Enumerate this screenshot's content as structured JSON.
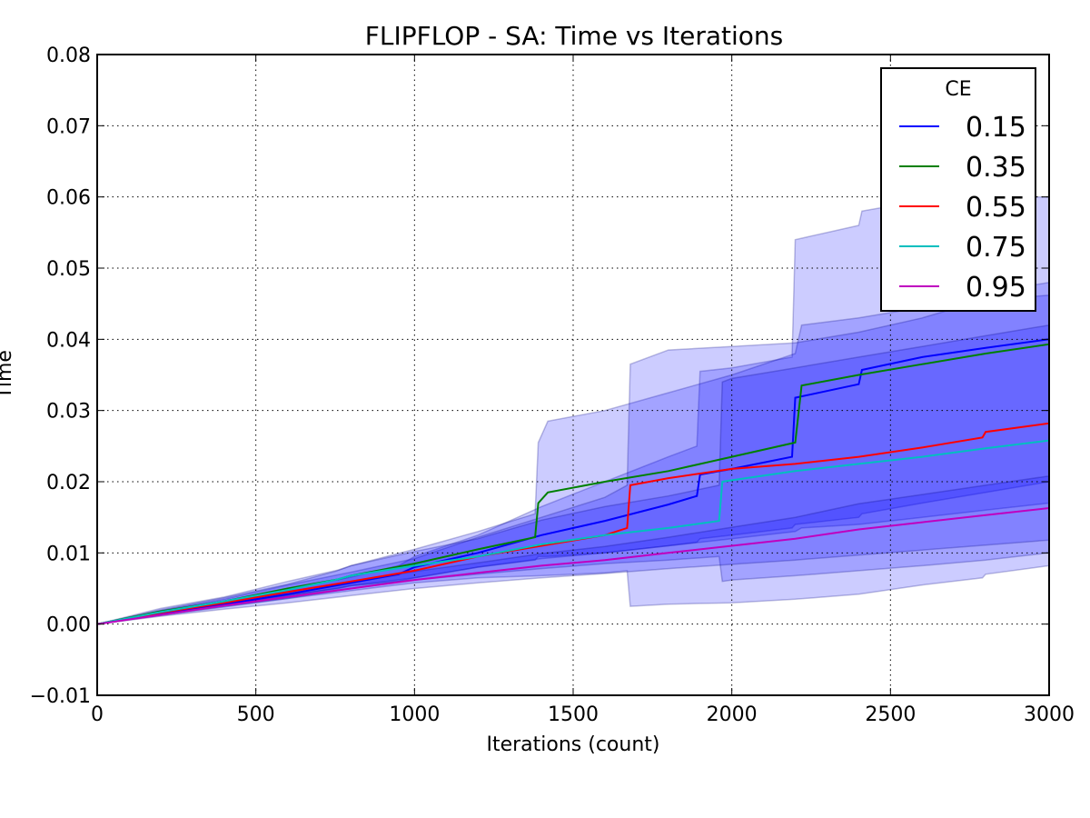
{
  "chart_data": {
    "type": "line",
    "title": "FLIPFLOP - SA: Time vs Iterations",
    "xlabel": "Iterations (count)",
    "ylabel": "Time",
    "xlim": [
      0,
      3000
    ],
    "ylim": [
      -0.01,
      0.08
    ],
    "xticks": [
      "0",
      "500",
      "1000",
      "1500",
      "2000",
      "2500",
      "3000"
    ],
    "yticks": [
      "−0.01",
      "0.00",
      "0.01",
      "0.02",
      "0.03",
      "0.04",
      "0.05",
      "0.06",
      "0.07",
      "0.08"
    ],
    "xtick_values": [
      0,
      500,
      1000,
      1500,
      2000,
      2500,
      3000
    ],
    "ytick_values": [
      -0.01,
      0,
      0.01,
      0.02,
      0.03,
      0.04,
      0.05,
      0.06,
      0.07,
      0.08
    ],
    "grid": true,
    "legend": {
      "title": "CE",
      "placement": "top-right"
    },
    "band_color": "#0000ff",
    "series": [
      {
        "name": "0.15",
        "color": "#0000ff",
        "x": [
          0,
          200,
          400,
          600,
          800,
          950,
          1000,
          1200,
          1400,
          1600,
          1800,
          1890,
          1900,
          2000,
          2190,
          2200,
          2400,
          2410,
          2600,
          2800,
          3000
        ],
        "y": [
          0,
          0.0015,
          0.0028,
          0.0042,
          0.0058,
          0.007,
          0.008,
          0.01,
          0.0125,
          0.0145,
          0.0168,
          0.018,
          0.021,
          0.0218,
          0.0235,
          0.0318,
          0.0337,
          0.0357,
          0.0375,
          0.0388,
          0.04
        ],
        "lower": [
          0,
          0.0012,
          0.0024,
          0.0036,
          0.005,
          0.006,
          0.0065,
          0.008,
          0.0092,
          0.01,
          0.011,
          0.0115,
          0.012,
          0.0125,
          0.0135,
          0.014,
          0.015,
          0.0155,
          0.017,
          0.0185,
          0.02
        ],
        "upper": [
          0,
          0.0018,
          0.0032,
          0.0048,
          0.0066,
          0.0082,
          0.0095,
          0.0125,
          0.0165,
          0.02,
          0.0235,
          0.025,
          0.0355,
          0.036,
          0.0375,
          0.054,
          0.056,
          0.058,
          0.0595,
          0.06,
          0.06
        ]
      },
      {
        "name": "0.35",
        "color": "#008000",
        "x": [
          0,
          200,
          400,
          600,
          760,
          800,
          1000,
          1200,
          1380,
          1390,
          1420,
          1600,
          1800,
          2000,
          2200,
          2220,
          2400,
          2600,
          2800,
          3000
        ],
        "y": [
          0,
          0.0018,
          0.0032,
          0.005,
          0.0063,
          0.0068,
          0.0085,
          0.0105,
          0.0122,
          0.017,
          0.0185,
          0.02,
          0.0215,
          0.0235,
          0.0255,
          0.0335,
          0.035,
          0.0365,
          0.038,
          0.0393
        ],
        "lower": [
          0,
          0.0014,
          0.0026,
          0.004,
          0.005,
          0.0054,
          0.0065,
          0.008,
          0.009,
          0.0095,
          0.0095,
          0.01,
          0.011,
          0.012,
          0.013,
          0.0135,
          0.014,
          0.015,
          0.016,
          0.017
        ],
        "upper": [
          0,
          0.0022,
          0.0038,
          0.006,
          0.0076,
          0.0082,
          0.0105,
          0.013,
          0.0155,
          0.0255,
          0.0285,
          0.03,
          0.0325,
          0.035,
          0.038,
          0.042,
          0.043,
          0.0445,
          0.0455,
          0.0462
        ]
      },
      {
        "name": "0.55",
        "color": "#ff0000",
        "x": [
          0,
          200,
          400,
          600,
          800,
          1000,
          1200,
          1400,
          1600,
          1670,
          1680,
          1800,
          2000,
          2200,
          2400,
          2600,
          2790,
          2800,
          3000
        ],
        "y": [
          0,
          0.0016,
          0.003,
          0.0045,
          0.006,
          0.0075,
          0.0095,
          0.011,
          0.0125,
          0.0135,
          0.0195,
          0.0205,
          0.0218,
          0.0225,
          0.0235,
          0.0248,
          0.0262,
          0.027,
          0.0282
        ],
        "lower": [
          0,
          0.0013,
          0.0025,
          0.0036,
          0.0047,
          0.0058,
          0.0065,
          0.0068,
          0.0072,
          0.0075,
          0.0025,
          0.0028,
          0.003,
          0.0035,
          0.0042,
          0.0055,
          0.0065,
          0.007,
          0.0082
        ],
        "upper": [
          0,
          0.0019,
          0.0035,
          0.0055,
          0.0073,
          0.0092,
          0.0122,
          0.015,
          0.0178,
          0.0195,
          0.0365,
          0.0385,
          0.039,
          0.0395,
          0.041,
          0.043,
          0.0455,
          0.0465,
          0.048
        ]
      },
      {
        "name": "0.75",
        "color": "#00bfbf",
        "x": [
          0,
          200,
          400,
          600,
          750,
          800,
          1000,
          1200,
          1400,
          1600,
          1800,
          1960,
          1970,
          2000,
          2200,
          2400,
          2600,
          2800,
          3000
        ],
        "y": [
          0,
          0.0017,
          0.0032,
          0.0048,
          0.0062,
          0.0068,
          0.0082,
          0.0095,
          0.0112,
          0.0125,
          0.0135,
          0.0145,
          0.02,
          0.0202,
          0.0215,
          0.0225,
          0.0235,
          0.0247,
          0.0258
        ],
        "lower": [
          0,
          0.0014,
          0.0027,
          0.004,
          0.005,
          0.0054,
          0.0062,
          0.007,
          0.0078,
          0.0085,
          0.009,
          0.0095,
          0.006,
          0.0062,
          0.0068,
          0.0075,
          0.0082,
          0.009,
          0.01
        ],
        "upper": [
          0,
          0.002,
          0.0037,
          0.0056,
          0.0074,
          0.0082,
          0.0102,
          0.012,
          0.0146,
          0.0165,
          0.018,
          0.0195,
          0.034,
          0.0345,
          0.036,
          0.0375,
          0.039,
          0.0405,
          0.042
        ]
      },
      {
        "name": "0.95",
        "color": "#bf00bf",
        "x": [
          0,
          200,
          400,
          600,
          800,
          1000,
          1200,
          1400,
          1600,
          1800,
          2000,
          2200,
          2400,
          2600,
          2800,
          3000
        ],
        "y": [
          0,
          0.0013,
          0.0026,
          0.0038,
          0.005,
          0.0062,
          0.0072,
          0.0082,
          0.009,
          0.01,
          0.011,
          0.012,
          0.0133,
          0.0143,
          0.0153,
          0.0163
        ],
        "lower": [
          0,
          0.0011,
          0.0021,
          0.003,
          0.004,
          0.005,
          0.0058,
          0.0065,
          0.0071,
          0.0078,
          0.0084,
          0.009,
          0.0097,
          0.0104,
          0.0111,
          0.0118
        ],
        "upper": [
          0,
          0.0015,
          0.0031,
          0.0046,
          0.006,
          0.0074,
          0.0086,
          0.0099,
          0.0109,
          0.0122,
          0.0136,
          0.015,
          0.0169,
          0.0182,
          0.0195,
          0.0208
        ]
      }
    ]
  }
}
